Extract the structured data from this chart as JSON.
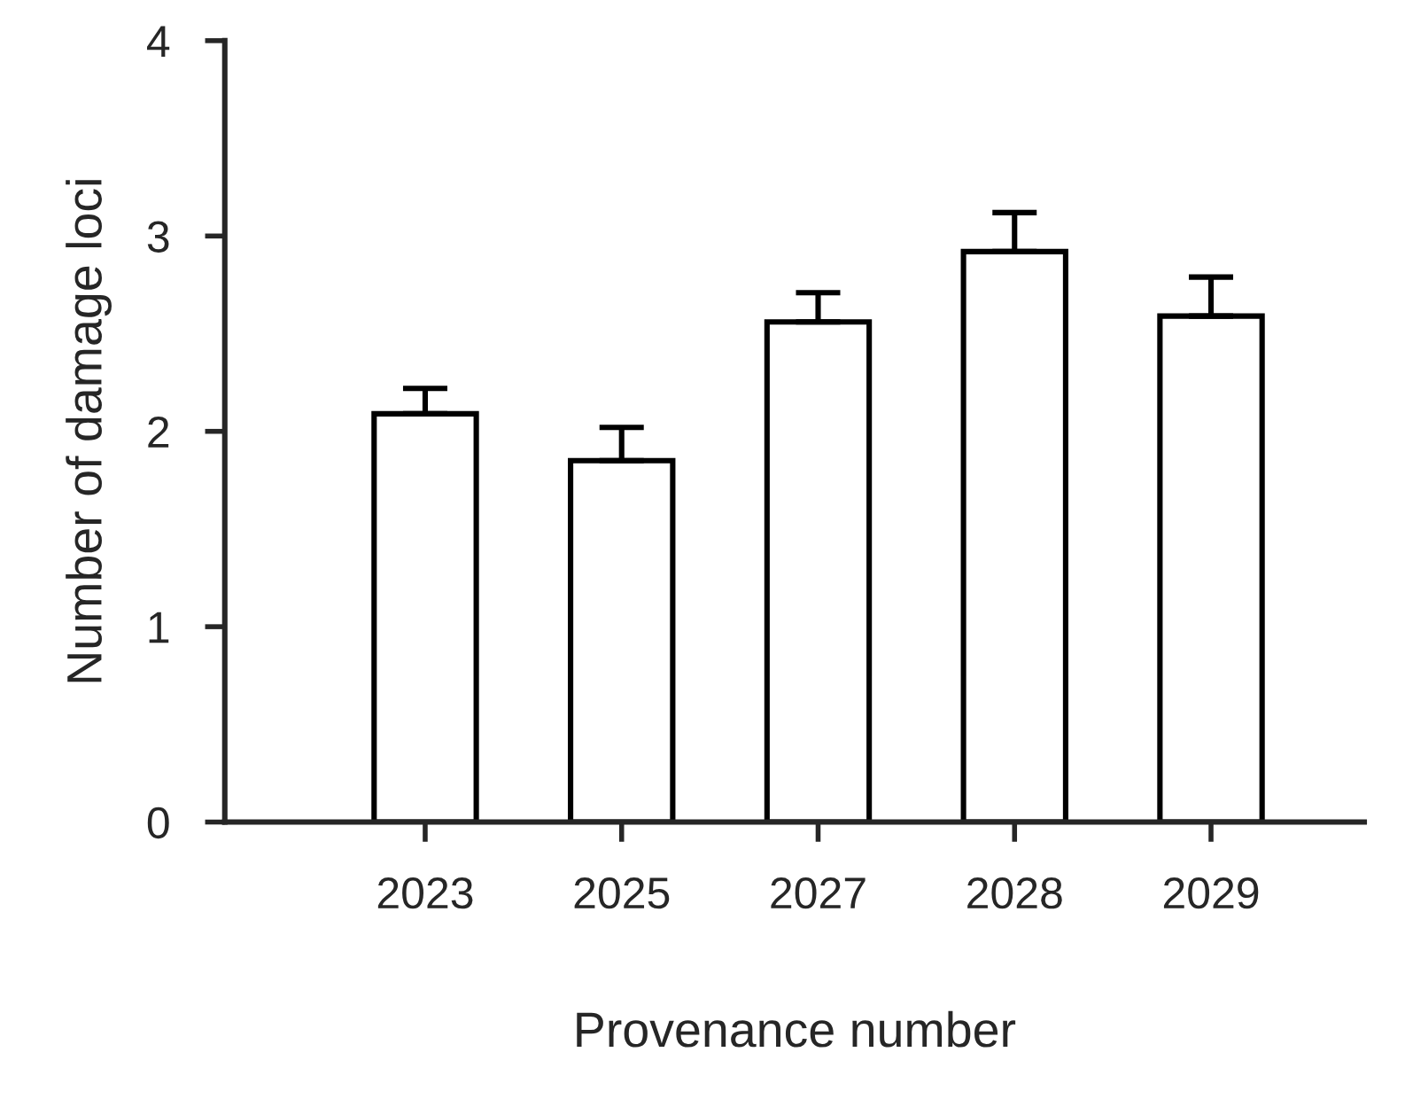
{
  "chart_data": {
    "type": "bar",
    "xlabel": "Provenance number",
    "ylabel": "Number of damage loci",
    "categories": [
      "2023",
      "2025",
      "2027",
      "2028",
      "2029"
    ],
    "values": [
      2.09,
      1.85,
      2.56,
      2.92,
      2.59
    ],
    "errors": [
      [
        2.09,
        2.22
      ],
      [
        1.85,
        2.02
      ],
      [
        2.56,
        2.71
      ],
      [
        2.92,
        3.12
      ],
      [
        2.59,
        2.79
      ]
    ],
    "color": "#ffffff",
    "ylim": [
      0,
      4
    ],
    "yticks": [
      0,
      1,
      2,
      3,
      4
    ],
    "grid": false,
    "legend": false
  }
}
